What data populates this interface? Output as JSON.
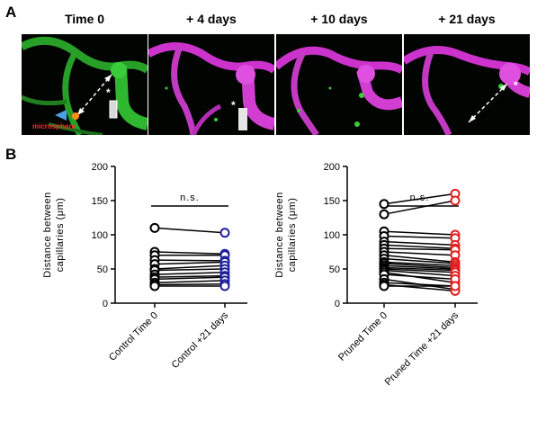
{
  "panel_a": {
    "letter": "A",
    "titles": [
      "Time 0",
      "+ 4 days",
      "+ 10 days",
      "+ 21 days"
    ],
    "microsphere_label": "microsphere",
    "marker": "*",
    "colors": {
      "vessel_green": "#2fb82f",
      "vessel_magenta": "#cc33cc",
      "microsphere": "#ff8c1a",
      "arrowhead": "#4aa0e0"
    }
  },
  "panel_b": {
    "letter": "B",
    "ylabel": "Distance between capillaries (μm)",
    "significance": "n.s."
  },
  "chart_data": [
    {
      "type": "scatter",
      "subtype": "paired-line",
      "categories": [
        "Control Time 0",
        "Control +21 days"
      ],
      "ylabel": "Distance between capillaries (μm)",
      "ylim": [
        0,
        200
      ],
      "yticks": [
        0,
        50,
        100,
        150,
        200
      ],
      "annotation": "n.s.",
      "marker_colors": [
        "#000000",
        "#1f1f9e"
      ],
      "pairs": [
        [
          110,
          103
        ],
        [
          75,
          72
        ],
        [
          70,
          70
        ],
        [
          63,
          62
        ],
        [
          57,
          60
        ],
        [
          50,
          55
        ],
        [
          48,
          50
        ],
        [
          42,
          45
        ],
        [
          38,
          40
        ],
        [
          35,
          38
        ],
        [
          30,
          33
        ],
        [
          27,
          28
        ],
        [
          25,
          25
        ]
      ]
    },
    {
      "type": "scatter",
      "subtype": "paired-line",
      "categories": [
        "Pruned Time 0",
        "Pruned Time +21 days"
      ],
      "ylabel": "Distance between capillaries (μm)",
      "ylim": [
        0,
        200
      ],
      "yticks": [
        0,
        50,
        100,
        150,
        200
      ],
      "annotation": "n.s.",
      "marker_colors": [
        "#000000",
        "#e02020"
      ],
      "pairs": [
        [
          145,
          160
        ],
        [
          130,
          150
        ],
        [
          105,
          100
        ],
        [
          98,
          95
        ],
        [
          90,
          85
        ],
        [
          85,
          80
        ],
        [
          80,
          78
        ],
        [
          75,
          70
        ],
        [
          70,
          60
        ],
        [
          65,
          58
        ],
        [
          60,
          55
        ],
        [
          58,
          52
        ],
        [
          55,
          50
        ],
        [
          52,
          48
        ],
        [
          50,
          45
        ],
        [
          48,
          40
        ],
        [
          45,
          30
        ],
        [
          42,
          35
        ],
        [
          35,
          20
        ],
        [
          30,
          25
        ],
        [
          27,
          18
        ],
        [
          25,
          25
        ]
      ]
    }
  ]
}
